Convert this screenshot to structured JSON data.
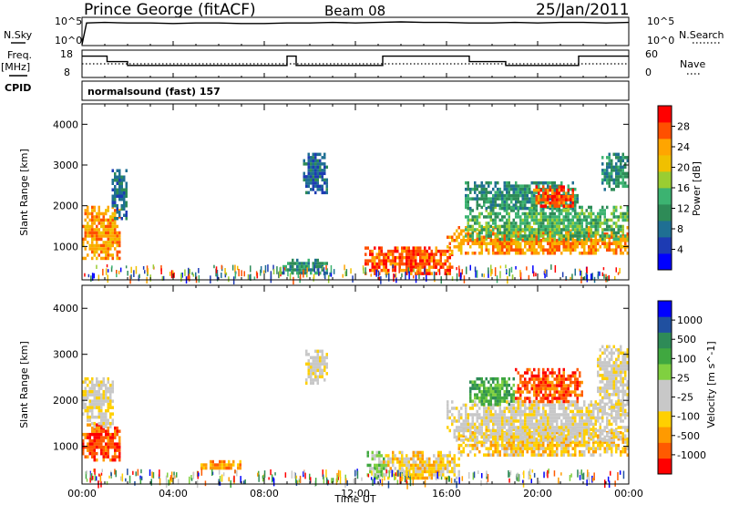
{
  "header": {
    "station": "Prince George (fitACF)",
    "beam": "Beam 08",
    "date": "25/Jan/2011"
  },
  "top_panel": {
    "left_labels": {
      "nsky": "N.Sky",
      "freq": "Freq.",
      "freq_unit": "[MHz]",
      "cpid": "CPID"
    },
    "right_labels": {
      "nsearch": "N.Search",
      "nave": "Nave"
    },
    "noise_ticks_left": [
      "10^5",
      "10^0"
    ],
    "noise_ticks_right": [
      "10^5",
      "10^0"
    ],
    "freq_ticks": [
      "18",
      "8"
    ],
    "nave_ticks": [
      "60",
      "0"
    ],
    "cpid_text": "normalsound (fast) 157"
  },
  "chart_data": [
    {
      "type": "line",
      "name": "noise",
      "x_hours": [
        0,
        0.2,
        1,
        2,
        3,
        4,
        5,
        6,
        7,
        8,
        9,
        10,
        11,
        12,
        13,
        14,
        15,
        16,
        17,
        18,
        19,
        20,
        21,
        22,
        23,
        24
      ],
      "n_sky_log10": [
        0.2,
        4.0,
        4.1,
        4.0,
        4.0,
        3.9,
        4.0,
        4.0,
        3.9,
        3.9,
        4.0,
        4.0,
        4.1,
        4.0,
        4.1,
        4.2,
        4.1,
        4.1,
        4.0,
        4.0,
        4.1,
        4.0,
        4.1,
        4.1,
        4.0,
        4.1
      ],
      "ylim": [
        0,
        5
      ]
    },
    {
      "type": "line",
      "name": "frequency",
      "steps": [
        {
          "start": 0.0,
          "end": 1.1,
          "mhz": 15.8
        },
        {
          "start": 1.1,
          "end": 2.0,
          "mhz": 13.8
        },
        {
          "start": 2.0,
          "end": 9.0,
          "mhz": 12.4
        },
        {
          "start": 9.0,
          "end": 9.4,
          "mhz": 15.8
        },
        {
          "start": 9.4,
          "end": 13.2,
          "mhz": 12.4
        },
        {
          "start": 13.2,
          "end": 17.0,
          "mhz": 15.8
        },
        {
          "start": 17.0,
          "end": 18.6,
          "mhz": 13.8
        },
        {
          "start": 18.6,
          "end": 21.8,
          "mhz": 12.4
        },
        {
          "start": 21.8,
          "end": 24.0,
          "mhz": 15.8
        }
      ],
      "nave": 30,
      "ylim": [
        8,
        18
      ]
    },
    {
      "type": "heatmap",
      "name": "power",
      "xlim_hours": [
        0,
        24
      ],
      "ylim_km": [
        180,
        4500
      ],
      "ylabel": "Slant Range [km]",
      "colorbar": {
        "label": "Power [dB]",
        "ticks": [
          "28",
          "24",
          "20",
          "16",
          "12",
          "8",
          "4"
        ],
        "colors": [
          "#0000ff",
          "#1d3bb3",
          "#1f6f93",
          "#2e8b57",
          "#3cb371",
          "#9acd32",
          "#f0c000",
          "#ffa500",
          "#ff5000",
          "#ff0000"
        ]
      },
      "regions": [
        {
          "t": [
            0.0,
            1.7
          ],
          "r": [
            700,
            2000
          ],
          "level": 7
        },
        {
          "t": [
            1.3,
            2.0
          ],
          "r": [
            1700,
            2900
          ],
          "level": 2
        },
        {
          "t": [
            9.7,
            10.8
          ],
          "r": [
            2300,
            3300
          ],
          "level": 2
        },
        {
          "t": [
            8.7,
            10.8
          ],
          "r": [
            350,
            700
          ],
          "level": 3
        },
        {
          "t": [
            12.4,
            16.3
          ],
          "r": [
            350,
            1000
          ],
          "level": 8
        },
        {
          "t": [
            16.0,
            24.0
          ],
          "r": [
            800,
            1500
          ],
          "level": 7
        },
        {
          "t": [
            16.8,
            24.0
          ],
          "r": [
            1200,
            2000
          ],
          "level": 4
        },
        {
          "t": [
            16.8,
            21.8
          ],
          "r": [
            1900,
            2600
          ],
          "level": 3
        },
        {
          "t": [
            19.8,
            21.6
          ],
          "r": [
            2000,
            2500
          ],
          "level": 8
        },
        {
          "t": [
            22.8,
            24.0
          ],
          "r": [
            2400,
            3300
          ],
          "level": 3
        }
      ]
    },
    {
      "type": "heatmap",
      "name": "velocity",
      "xlim_hours": [
        0,
        24
      ],
      "ylim_km": [
        180,
        4500
      ],
      "xlabel": "Time UT",
      "ylabel": "Slant Range [km]",
      "xticks": [
        "00:00",
        "04:00",
        "08:00",
        "12:00",
        "16:00",
        "20:00",
        "00:00"
      ],
      "colorbar": {
        "label": "Velocity [m s^-1]",
        "ticks": [
          "1000",
          "500",
          "100",
          "25",
          "-25",
          "-100",
          "-500",
          "-1000"
        ],
        "colors": [
          "#ff0000",
          "#ff5a00",
          "#ff9a00",
          "#ffd000",
          "#c8c8c8",
          "#c8c8c8",
          "#80d040",
          "#40a840",
          "#2e8b57",
          "#2050a0",
          "#0000ff"
        ]
      },
      "regions": [
        {
          "t": [
            0.0,
            1.7
          ],
          "r": [
            700,
            1500
          ],
          "level": 1
        },
        {
          "t": [
            0.0,
            1.4
          ],
          "r": [
            1400,
            2500
          ],
          "level": 4
        },
        {
          "t": [
            9.8,
            10.8
          ],
          "r": [
            2400,
            3100
          ],
          "level": 4
        },
        {
          "t": [
            5.2,
            7.0
          ],
          "r": [
            500,
            700
          ],
          "level": 2
        },
        {
          "t": [
            12.5,
            13.4
          ],
          "r": [
            300,
            900
          ],
          "level": 6
        },
        {
          "t": [
            13.2,
            16.5
          ],
          "r": [
            300,
            900
          ],
          "level": 3
        },
        {
          "t": [
            16.5,
            24.0
          ],
          "r": [
            800,
            1400
          ],
          "level": 3
        },
        {
          "t": [
            16.0,
            24.0
          ],
          "r": [
            1100,
            2000
          ],
          "level": 4
        },
        {
          "t": [
            17.0,
            19.0
          ],
          "r": [
            1900,
            2500
          ],
          "level": 7
        },
        {
          "t": [
            19.0,
            22.0
          ],
          "r": [
            2000,
            2700
          ],
          "level": 1
        },
        {
          "t": [
            22.6,
            24.0
          ],
          "r": [
            1700,
            3200
          ],
          "level": 4
        }
      ]
    }
  ]
}
